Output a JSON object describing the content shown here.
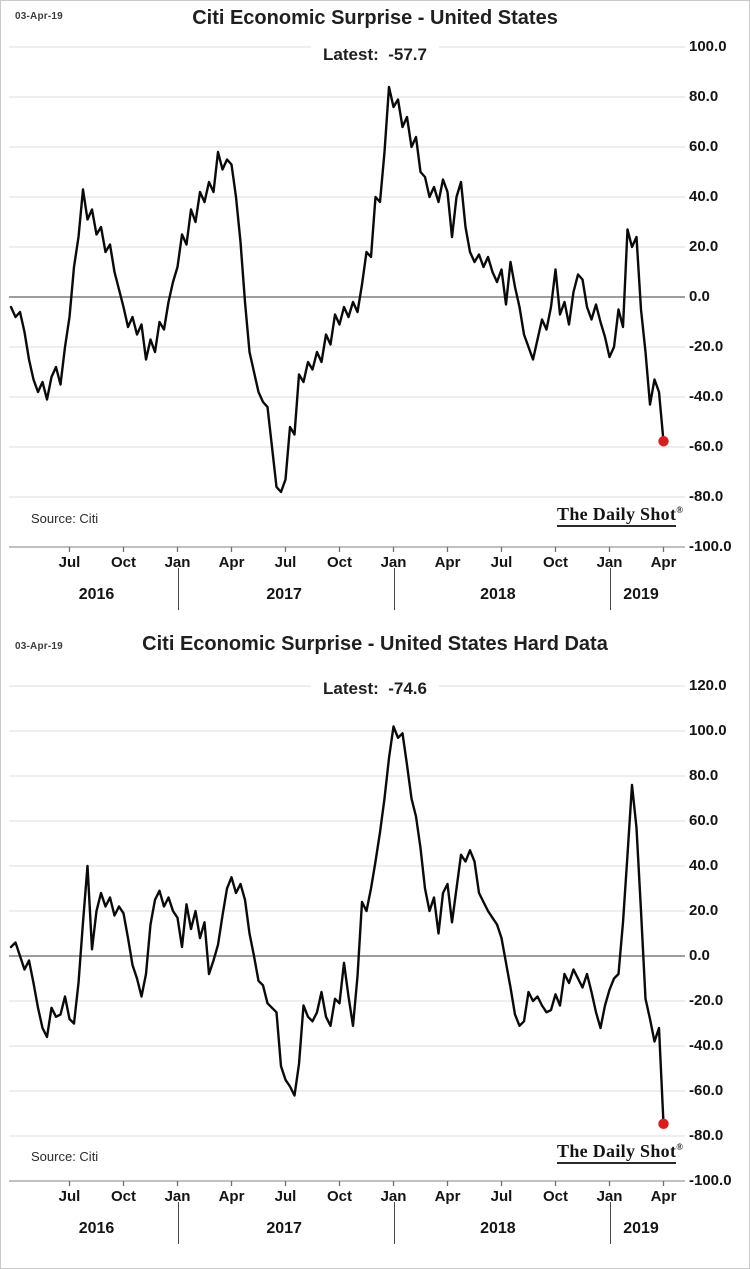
{
  "page": {
    "background": "#ffffff",
    "border_color": "#c9c9c9"
  },
  "chart_data": [
    {
      "type": "line",
      "date_annotation": "03-Apr-19",
      "title": "Citi Economic Surprise - United States",
      "subtitle": "Latest:  -57.7",
      "latest_value": -57.7,
      "source": "Source: Citi",
      "brand": "The Daily Shot",
      "brand_mark": "®",
      "x_range": "weekly samples, mid-Jun 2016 to 03-Apr-2019",
      "ylim": [
        -100,
        100
      ],
      "ytick_step": 20,
      "grid": true,
      "zero_line": true,
      "legend": false,
      "line_color": "#0a0a0a",
      "marker_color": "#e01a1b",
      "grid_color": "#dedede",
      "zero_color": "#7d7d7d",
      "axis_color": "#9a9a9a",
      "x_ticks": [
        {
          "label": "Jul",
          "i": 13
        },
        {
          "label": "Oct",
          "i": 25
        },
        {
          "label": "Jan",
          "i": 37
        },
        {
          "label": "Apr",
          "i": 49
        },
        {
          "label": "Jul",
          "i": 61
        },
        {
          "label": "Oct",
          "i": 73
        },
        {
          "label": "Jan",
          "i": 85
        },
        {
          "label": "Apr",
          "i": 97
        },
        {
          "label": "Jul",
          "i": 109
        },
        {
          "label": "Oct",
          "i": 121
        },
        {
          "label": "Jan",
          "i": 133
        },
        {
          "label": "Apr",
          "i": 145
        }
      ],
      "year_labels": [
        {
          "label": "2016",
          "i": 19
        },
        {
          "label": "2017",
          "i": 60.7
        },
        {
          "label": "2018",
          "i": 108.2
        },
        {
          "label": "2019",
          "i": 140
        }
      ],
      "year_separators_i": [
        37,
        85,
        133
      ],
      "series": [
        {
          "name": "Citi Economic Surprise Index - United States",
          "values": [
            -4,
            -8,
            -6,
            -14,
            -25,
            -33,
            -38,
            -34,
            -41,
            -32,
            -28,
            -35,
            -20,
            -8,
            12,
            24,
            43,
            31,
            35,
            25,
            28,
            18,
            21,
            10,
            3,
            -4,
            -12,
            -8,
            -15,
            -11,
            -25,
            -17,
            -22,
            -10,
            -13,
            -2,
            6,
            12,
            25,
            21,
            35,
            30,
            42,
            38,
            46,
            42,
            58,
            51,
            55,
            53,
            40,
            22,
            -2,
            -22,
            -30,
            -38,
            -42,
            -44,
            -60,
            -76,
            -78,
            -73,
            -52,
            -55,
            -31,
            -34,
            -26,
            -29,
            -22,
            -26,
            -15,
            -19,
            -7,
            -11,
            -4,
            -8,
            -2,
            -6,
            5,
            18,
            16,
            40,
            38,
            58,
            84,
            76,
            79,
            68,
            72,
            60,
            64,
            50,
            48,
            40,
            44,
            38,
            47,
            42,
            24,
            40,
            46,
            28,
            18,
            14,
            17,
            12,
            16,
            10,
            6,
            11,
            -3,
            14,
            4,
            -4,
            -15,
            -20,
            -25,
            -17,
            -9,
            -13,
            -4,
            11,
            -7,
            -2,
            -11,
            2,
            9,
            7,
            -4,
            -9,
            -3,
            -10,
            -16,
            -24,
            -20,
            -5,
            -12,
            27,
            20,
            24,
            -5,
            -22,
            -43,
            -33,
            -38,
            -57.7
          ]
        }
      ]
    },
    {
      "type": "line",
      "date_annotation": "03-Apr-19",
      "title": "Citi Economic Surprise - United States Hard Data",
      "subtitle": "Latest:  -74.6",
      "latest_value": -74.6,
      "source": "Source: Citi",
      "brand": "The Daily Shot",
      "brand_mark": "®",
      "x_range": "weekly samples, mid-Jun 2016 to 03-Apr-2019",
      "ylim": [
        -100,
        120
      ],
      "ytick_step": 20,
      "grid": true,
      "zero_line": true,
      "legend": false,
      "line_color": "#0a0a0a",
      "marker_color": "#e01a1b",
      "grid_color": "#dedede",
      "zero_color": "#7d7d7d",
      "axis_color": "#9a9a9a",
      "x_ticks": [
        {
          "label": "Jul",
          "i": 13
        },
        {
          "label": "Oct",
          "i": 25
        },
        {
          "label": "Jan",
          "i": 37
        },
        {
          "label": "Apr",
          "i": 49
        },
        {
          "label": "Jul",
          "i": 61
        },
        {
          "label": "Oct",
          "i": 73
        },
        {
          "label": "Jan",
          "i": 85
        },
        {
          "label": "Apr",
          "i": 97
        },
        {
          "label": "Jul",
          "i": 109
        },
        {
          "label": "Oct",
          "i": 121
        },
        {
          "label": "Jan",
          "i": 133
        },
        {
          "label": "Apr",
          "i": 145
        }
      ],
      "year_labels": [
        {
          "label": "2016",
          "i": 19
        },
        {
          "label": "2017",
          "i": 60.7
        },
        {
          "label": "2018",
          "i": 108.2
        },
        {
          "label": "2019",
          "i": 140
        }
      ],
      "year_separators_i": [
        37,
        85,
        133
      ],
      "series": [
        {
          "name": "Citi Economic Surprise Index - United States Hard Data",
          "values": [
            4,
            6,
            0,
            -6,
            -2,
            -12,
            -23,
            -32,
            -36,
            -23,
            -27,
            -26,
            -18,
            -28,
            -30,
            -12,
            15,
            40,
            3,
            20,
            28,
            22,
            26,
            18,
            22,
            19,
            8,
            -4,
            -10,
            -18,
            -8,
            14,
            25,
            29,
            22,
            26,
            20,
            17,
            4,
            23,
            12,
            20,
            8,
            15,
            -8,
            -2,
            5,
            18,
            30,
            35,
            28,
            32,
            25,
            10,
            0,
            -11,
            -13,
            -21,
            -23,
            -25,
            -49,
            -55,
            -58,
            -62,
            -48,
            -22,
            -27,
            -29,
            -25,
            -16,
            -27,
            -31,
            -19,
            -21,
            -3,
            -18,
            -31,
            -9,
            24,
            20,
            30,
            42,
            55,
            70,
            88,
            102,
            97,
            99,
            85,
            70,
            62,
            48,
            30,
            20,
            26,
            10,
            28,
            32,
            15,
            30,
            45,
            42,
            47,
            42,
            28,
            24,
            20,
            17,
            14,
            8,
            -3,
            -14,
            -26,
            -31,
            -29,
            -16,
            -20,
            -18,
            -22,
            -25,
            -24,
            -17,
            -22,
            -8,
            -12,
            -6,
            -10,
            -14,
            -8,
            -16,
            -25,
            -32,
            -22,
            -15,
            -10,
            -8,
            15,
            45,
            76,
            57,
            20,
            -19,
            -28,
            -38,
            -32,
            -74.6
          ]
        }
      ]
    }
  ]
}
